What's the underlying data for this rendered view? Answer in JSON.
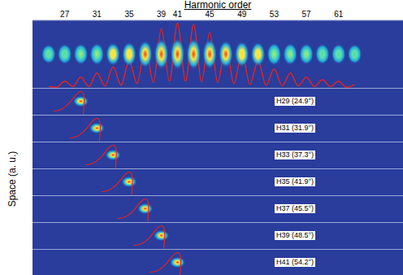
{
  "chart_data": {
    "type": "line",
    "xlabel": "Harmonic order",
    "ylabel": "Space (a. u.)",
    "x": [
      25,
      26,
      27,
      28,
      29,
      30,
      31,
      32,
      33,
      34,
      35,
      36,
      37,
      38,
      39,
      40,
      41,
      42,
      43,
      44,
      45,
      46,
      47,
      48,
      49,
      50,
      51,
      52,
      53,
      54,
      55,
      56,
      57,
      58,
      59,
      60,
      61,
      62,
      63
    ],
    "values": [
      0.02,
      0.01,
      0.1,
      0.02,
      0.16,
      0.02,
      0.22,
      0.03,
      0.31,
      0.04,
      0.4,
      0.06,
      0.64,
      0.08,
      0.88,
      0.1,
      0.96,
      0.1,
      0.94,
      0.09,
      0.82,
      0.08,
      0.64,
      0.06,
      0.52,
      0.05,
      0.4,
      0.04,
      0.28,
      0.03,
      0.22,
      0.03,
      0.16,
      0.02,
      0.12,
      0.02,
      0.1,
      0.01,
      0.05
    ],
    "color": "#e8231f",
    "xlim": [
      23,
      69
    ],
    "xticks": [
      27,
      31,
      35,
      39,
      41,
      45,
      49,
      53,
      57,
      61
    ],
    "ylim": [
      0,
      1
    ],
    "tick_labels": "x",
    "panels": [
      {
        "harmonic": 29,
        "label": "H29 (24.9°)"
      },
      {
        "harmonic": 31,
        "label": "H31 (31.9°)"
      },
      {
        "harmonic": 33,
        "label": "H33 (37.3°)"
      },
      {
        "harmonic": 35,
        "label": "H35 (41.9°)"
      },
      {
        "harmonic": 37,
        "label": "H37 (45.5°)"
      },
      {
        "harmonic": 39,
        "label": "H39 (48.5°)"
      },
      {
        "harmonic": 41,
        "label": "H41 (54.2°)"
      }
    ]
  }
}
